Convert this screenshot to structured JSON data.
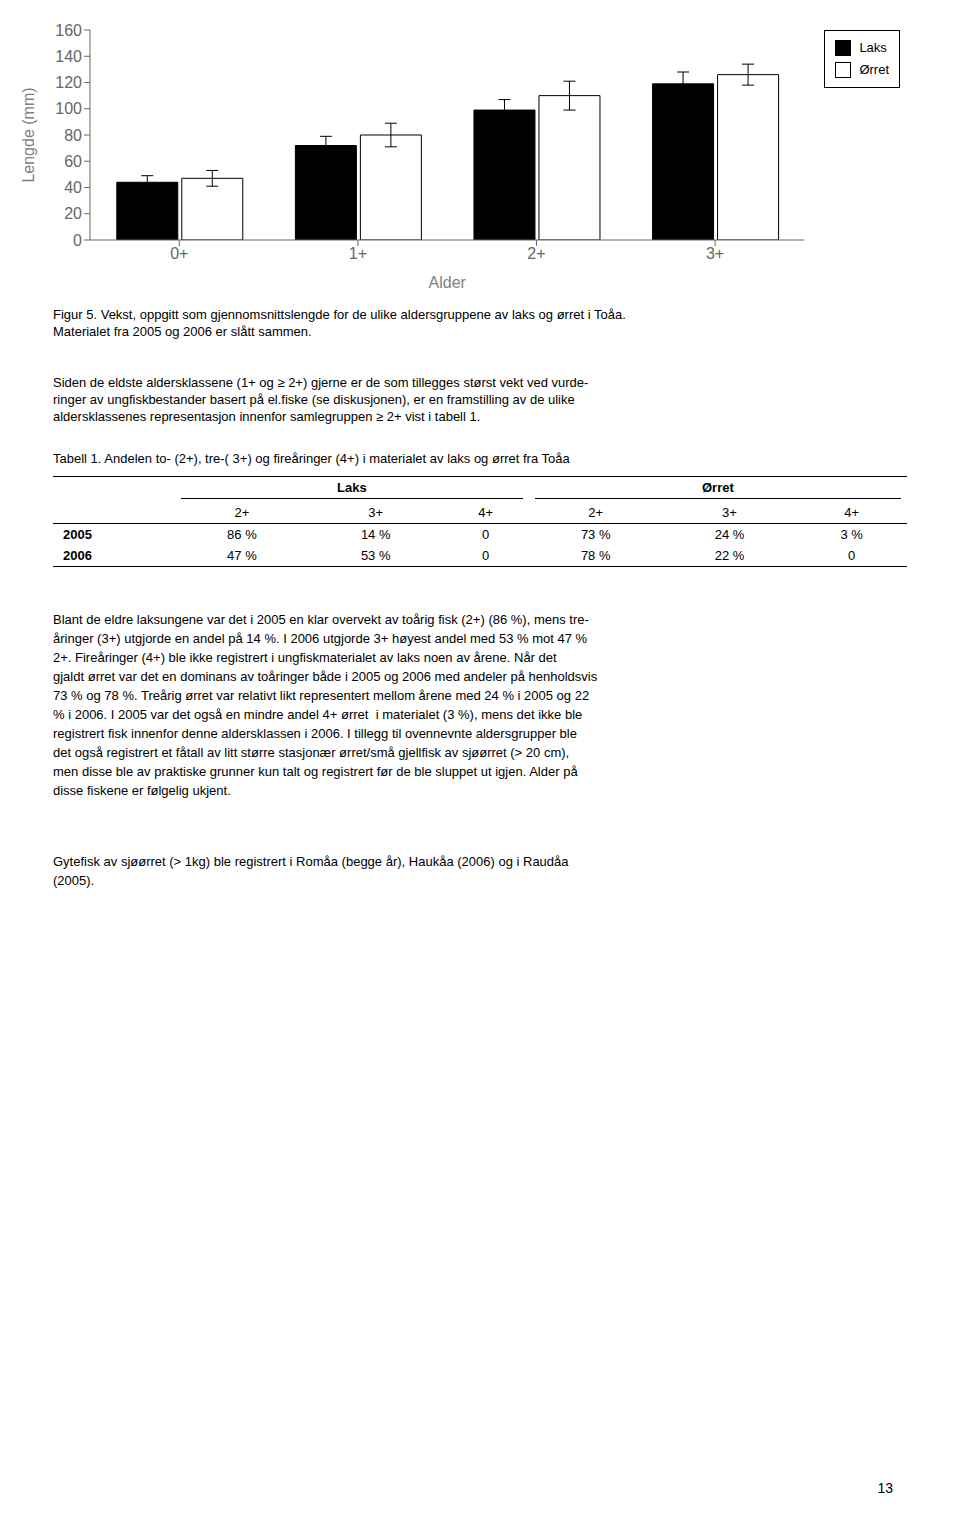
{
  "chart_data": {
    "type": "bar",
    "categories": [
      "0+",
      "1+",
      "2+",
      "3+"
    ],
    "x_label": "Alder",
    "y_label": "Lengde (mm)",
    "ylim": [
      0,
      160
    ],
    "yticks": [
      0,
      20,
      40,
      60,
      80,
      100,
      120,
      140,
      160
    ],
    "grid": false,
    "legend": "upper right",
    "series": [
      {
        "name": "Laks",
        "color": "#000000",
        "values": [
          44,
          72,
          99,
          119
        ],
        "errors": [
          5,
          7,
          8,
          9
        ]
      },
      {
        "name": "Ørret",
        "color": "#ffffff",
        "values": [
          47,
          80,
          110,
          126
        ],
        "errors": [
          6,
          9,
          11,
          8
        ]
      }
    ],
    "annotations": [
      "Figur 5. Vekst, oppgitt som gjennomsnittslengde for de ulike aldersgruppene av laks og ørret i Toåa.\nMaterialet fra 2005 og 2006 er slått sammen.",
      "Siden de eldste aldersklassene (1+ og ≥ 2+) gjerne er de som tillegges størst vekt ved vurde-\nringer av ungfiskbestander basert på el.fiske (se diskusjonen), er en framstilling av de ulike\naldersklassenes representasjon innenfor samlegruppen ≥ 2+ vist i tabell 1.",
      "Tabell 1. Andelen to- (2+), tre-( 3+) og fireåringer (4+) i materialet av laks og ørret fra Toåa",
      "Blant de eldre laksungene var det i 2005 en klar overvekt av toårig fisk (2+) (86 %), mens tre-\nåringer (3+) utgjorde en andel på 14 %. I 2006 utgjorde 3+ høyest andel med 53 % mot 47 %\n2+. Fireåringer (4+) ble ikke registrert i ungfiskmaterialet av laks noen av årene. Når det\ngjaldt ørret var det en dominans av toåringer både i 2005 og 2006 med andeler på henholdsvis\n73 % og 78 %. Treårig ørret var relativt likt representert mellom årene med 24 % i 2005 og 22\n% i 2006. I 2005 var det også en mindre andel 4+ ørret  i materialet (3 %), mens det ikke ble\nregistrert fisk innenfor denne aldersklassen i 2006. I tillegg til ovennevnte aldersgrupper ble\ndet også registrert et fåtall av litt større stasjonær ørret/små gjellfisk av sjøørret (> 20 cm),\nmen disse ble av praktiske grunner kun talt og registrert før de ble sluppet ut igjen. Alder på\ndisse fiskene er følgelig ukjent.",
      "Gytefisk av sjøørret (> 1kg) ble registrert i Romåa (begge år), Haukåa (2006) og i Raudåa\n(2005).",
      "13"
    ],
    "table": {
      "groups": [
        "Laks",
        "Ørret"
      ],
      "columns": [
        "2+",
        "3+",
        "4+"
      ],
      "rows": [
        [
          "2005",
          "86 %",
          "14 %",
          "0",
          "73 %",
          "24 %",
          "3 %"
        ],
        [
          "2006",
          "47 %",
          "53 %",
          "0",
          "78 %",
          "22 %",
          "0"
        ]
      ]
    }
  }
}
